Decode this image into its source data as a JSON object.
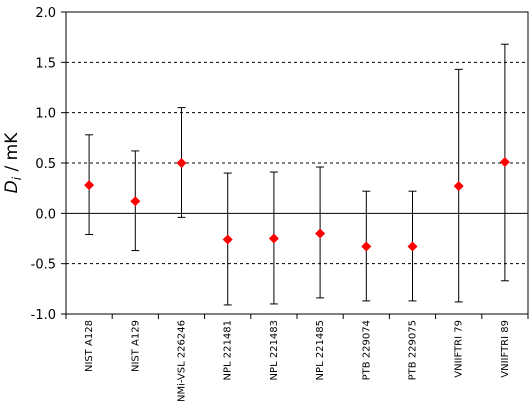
{
  "chart_data": {
    "type": "scatter",
    "title": "",
    "xlabel": "",
    "ylabel": {
      "symbol": "D",
      "subscript": "i",
      "unit": " / mK"
    },
    "ylim": [
      -1.0,
      2.0
    ],
    "yticks": [
      -1.0,
      -0.5,
      0.0,
      0.5,
      1.0,
      1.5,
      2.0
    ],
    "ytick_labels": [
      "-1.0",
      "-0.5",
      "0.0",
      "0.5",
      "1.0",
      "1.5",
      "2.0"
    ],
    "grid": "horizontal dashed",
    "marker": "diamond",
    "marker_color": "#ff0000",
    "errorbar_color": "#000000",
    "categories": [
      "NIST A128",
      "NIST A129",
      "NMi-VSL 226246",
      "NPL 221481",
      "NPL 221483",
      "NPL 221485",
      "PTB 229074",
      "PTB 229075",
      "VNIIFTRI 79",
      "VNIIFTRI 89"
    ],
    "values": [
      0.28,
      0.12,
      0.5,
      -0.26,
      -0.25,
      -0.2,
      -0.33,
      -0.33,
      0.27,
      0.51
    ],
    "error_lower": [
      -0.21,
      -0.37,
      -0.04,
      -0.91,
      -0.9,
      -0.84,
      -0.87,
      -0.87,
      -0.88,
      -0.67
    ],
    "error_upper": [
      0.78,
      0.62,
      1.05,
      0.4,
      0.41,
      0.46,
      0.22,
      0.22,
      1.43,
      1.68
    ]
  }
}
